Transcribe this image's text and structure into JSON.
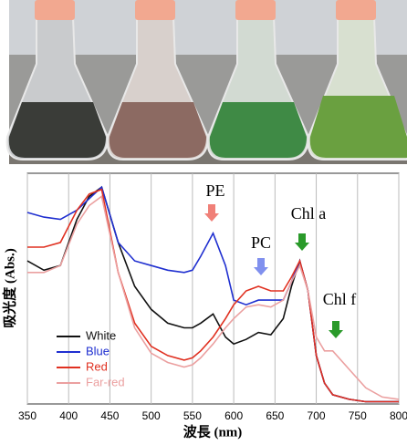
{
  "chart_data": {
    "type": "line",
    "x_label": "波長 (nm)",
    "y_label": "吸光度 (Abs.)",
    "x": [
      350,
      370,
      390,
      410,
      425,
      440,
      460,
      480,
      500,
      520,
      540,
      550,
      560,
      575,
      590,
      600,
      615,
      630,
      645,
      660,
      670,
      680,
      690,
      700,
      710,
      720,
      740,
      760,
      780,
      800
    ],
    "series": [
      {
        "name": "White",
        "color": "#111111",
        "values": [
          0.62,
          0.58,
          0.6,
          0.8,
          0.9,
          0.94,
          0.7,
          0.51,
          0.41,
          0.35,
          0.33,
          0.33,
          0.35,
          0.39,
          0.29,
          0.26,
          0.28,
          0.31,
          0.3,
          0.37,
          0.51,
          0.62,
          0.49,
          0.21,
          0.09,
          0.04,
          0.02,
          0.01,
          0.01,
          0.01
        ]
      },
      {
        "name": "Blue",
        "color": "#1f2fd0",
        "values": [
          0.83,
          0.81,
          0.8,
          0.84,
          0.89,
          0.94,
          0.7,
          0.62,
          0.6,
          0.58,
          0.57,
          0.58,
          0.64,
          0.74,
          0.6,
          0.45,
          0.43,
          0.45,
          0.45,
          0.45,
          0.53,
          0.62,
          0.49,
          0.21,
          0.09,
          0.04,
          0.02,
          0.01,
          0.01,
          0.01
        ]
      },
      {
        "name": "Red",
        "color": "#e03020",
        "values": [
          0.68,
          0.68,
          0.7,
          0.84,
          0.91,
          0.93,
          0.57,
          0.35,
          0.25,
          0.21,
          0.19,
          0.2,
          0.23,
          0.29,
          0.37,
          0.43,
          0.49,
          0.51,
          0.49,
          0.49,
          0.55,
          0.62,
          0.49,
          0.21,
          0.09,
          0.04,
          0.02,
          0.01,
          0.01,
          0.01
        ]
      },
      {
        "name": "Far-red",
        "color": "#eba0a0",
        "values": [
          0.57,
          0.57,
          0.6,
          0.78,
          0.86,
          0.9,
          0.57,
          0.33,
          0.22,
          0.18,
          0.16,
          0.17,
          0.2,
          0.26,
          0.33,
          0.37,
          0.42,
          0.43,
          0.42,
          0.45,
          0.53,
          0.6,
          0.49,
          0.29,
          0.23,
          0.23,
          0.15,
          0.07,
          0.03,
          0.02
        ]
      }
    ],
    "xlim": [
      350,
      800
    ],
    "xticks": [
      350,
      400,
      450,
      500,
      550,
      600,
      650,
      700,
      750,
      800
    ],
    "ylim": [
      0,
      1
    ],
    "grid": true,
    "annotations": [
      "PE",
      "PC",
      "Chl a",
      "Chl f"
    ]
  }
}
